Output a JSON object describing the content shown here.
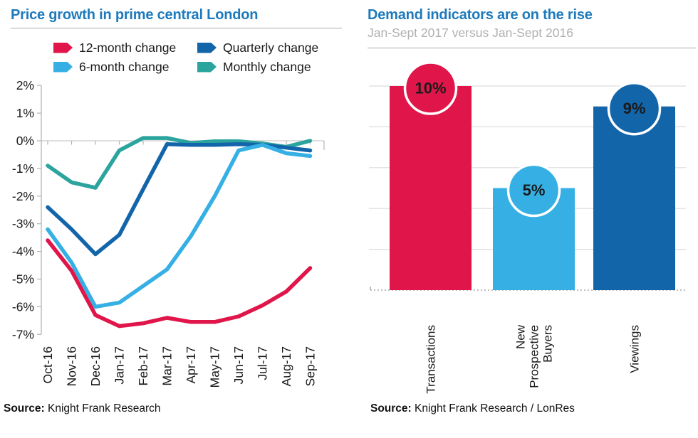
{
  "left_chart": {
    "title": "Price growth in prime central London",
    "legend": [
      {
        "label": "12-month change",
        "color": "#e0164a"
      },
      {
        "label": "Quarterly change",
        "color": "#1365aa"
      },
      {
        "label": "6-month change",
        "color": "#36b0e4"
      },
      {
        "label": "Monthly change",
        "color": "#2ca49e"
      }
    ],
    "source_label": "Source:",
    "source": "Knight Frank Research"
  },
  "right_chart": {
    "title": "Demand indicators are on the rise",
    "subtitle": "Jan-Sept 2017 versus Jan-Sept 2016",
    "source_label": "Source:",
    "source": "Knight Frank Research / LonRes"
  },
  "colors": {
    "title_blue": "#1e7abc",
    "subtitle_gray": "#b0b0b0",
    "axis_gray": "#b3b3b3",
    "zero_gridline_gray": "#c9c9c9",
    "bar_gridline_gray": "#dcdcdc",
    "dashed_baseline_gray": "#999999",
    "red": "#e0164a",
    "light_blue": "#36b0e4",
    "dark_blue": "#1365aa",
    "teal": "#2ca49e"
  },
  "chart_data": [
    {
      "type": "line",
      "title": "Price growth in prime central London",
      "x": [
        "Oct-16",
        "Nov-16",
        "Dec-16",
        "Jan-17",
        "Feb-17",
        "Mar-17",
        "Apr-17",
        "May-17",
        "Jun-17",
        "Jul-17",
        "Aug-17",
        "Sep-17"
      ],
      "ylim": [
        -7,
        2
      ],
      "y_ticks": [
        "2%",
        "1%",
        "0%",
        "-1%",
        "-2%",
        "-3%",
        "-4%",
        "-5%",
        "-6%",
        "-7%"
      ],
      "grid": "zero-line-only",
      "legend_position": "top",
      "series": [
        {
          "name": "12-month change",
          "color": "#e0164a",
          "values": [
            -3.6,
            -4.7,
            -6.3,
            -6.7,
            -6.6,
            -6.4,
            -6.55,
            -6.55,
            -6.35,
            -5.95,
            -5.45,
            -4.6
          ]
        },
        {
          "name": "6-month change",
          "color": "#36b0e4",
          "values": [
            -3.2,
            -4.4,
            -6.0,
            -5.85,
            -5.25,
            -4.65,
            -3.45,
            -2.0,
            -0.35,
            -0.15,
            -0.45,
            -0.55
          ]
        },
        {
          "name": "Quarterly change",
          "color": "#1365aa",
          "values": [
            -2.4,
            -3.2,
            -4.1,
            -3.4,
            -1.75,
            -0.12,
            -0.15,
            -0.15,
            -0.12,
            -0.15,
            -0.25,
            -0.35
          ]
        },
        {
          "name": "Monthly change",
          "color": "#2ca49e",
          "values": [
            -0.9,
            -1.5,
            -1.7,
            -0.35,
            0.1,
            0.1,
            -0.08,
            -0.02,
            -0.02,
            -0.1,
            -0.22,
            0.0
          ]
        }
      ],
      "source": "Knight Frank Research"
    },
    {
      "type": "bar",
      "title": "Demand indicators are on the rise",
      "subtitle": "Jan-Sept 2017 versus Jan-Sept 2016",
      "categories": [
        "Transactions",
        "New Prospective Buyers",
        "Viewings"
      ],
      "category_lines": [
        [
          "Transactions"
        ],
        [
          "New",
          "Prospective",
          "Buyers"
        ],
        [
          "Viewings"
        ]
      ],
      "values": [
        10,
        5,
        9
      ],
      "labels": [
        "10%",
        "5%",
        "9%"
      ],
      "colors": [
        "#e0164a",
        "#36b0e4",
        "#1365aa"
      ],
      "ylim": [
        0,
        10
      ],
      "gridline_step": 2,
      "baseline_style": "dashed",
      "source": "Knight Frank Research / LonRes"
    }
  ]
}
